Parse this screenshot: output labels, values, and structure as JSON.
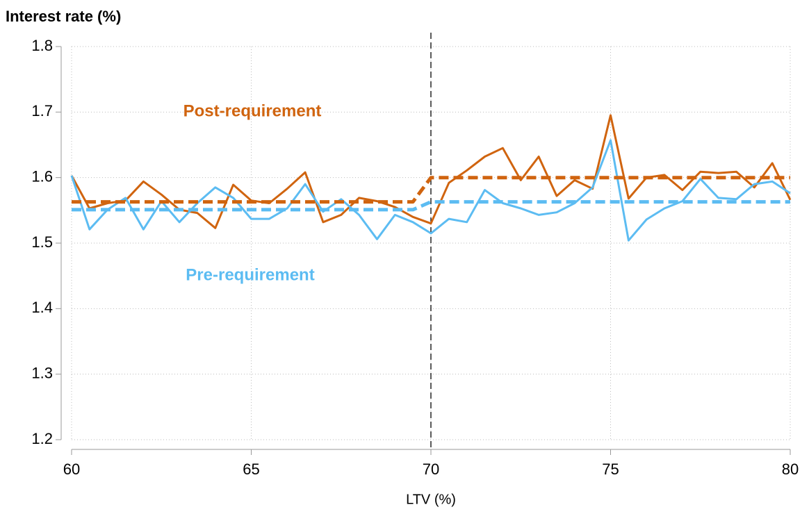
{
  "chart_data": {
    "type": "line",
    "y_axis_title": "Interest rate (%)",
    "x_axis_title": "LTV (%)",
    "x": [
      60,
      60.5,
      61,
      61.5,
      62,
      62.5,
      63,
      63.5,
      64,
      64.5,
      65,
      65.5,
      66,
      66.5,
      67,
      67.5,
      68,
      68.5,
      69,
      69.5,
      70,
      70.5,
      71,
      71.5,
      72,
      72.5,
      73,
      73.5,
      74,
      74.5,
      75,
      75.5,
      76,
      76.5,
      77,
      77.5,
      78,
      78.5,
      79,
      79.5,
      80
    ],
    "series": [
      {
        "name": "Post-requirement",
        "color": "#d0640f",
        "values": [
          1.603,
          1.553,
          1.561,
          1.565,
          1.594,
          1.574,
          1.551,
          1.546,
          1.523,
          1.589,
          1.565,
          1.561,
          1.583,
          1.608,
          1.532,
          1.543,
          1.569,
          1.564,
          1.555,
          1.54,
          1.53,
          1.592,
          1.611,
          1.632,
          1.645,
          1.596,
          1.632,
          1.572,
          1.596,
          1.583,
          1.695,
          1.568,
          1.6,
          1.604,
          1.581,
          1.609,
          1.607,
          1.609,
          1.585,
          1.622,
          1.566
        ]
      },
      {
        "name": "Pre-requirement",
        "color": "#5cbcf2",
        "values": [
          1.603,
          1.521,
          1.551,
          1.569,
          1.521,
          1.564,
          1.532,
          1.561,
          1.585,
          1.569,
          1.537,
          1.537,
          1.553,
          1.59,
          1.548,
          1.567,
          1.543,
          1.506,
          1.543,
          1.532,
          1.515,
          1.537,
          1.532,
          1.581,
          1.561,
          1.553,
          1.543,
          1.547,
          1.561,
          1.585,
          1.657,
          1.504,
          1.536,
          1.553,
          1.564,
          1.598,
          1.569,
          1.567,
          1.59,
          1.594,
          1.576
        ]
      }
    ],
    "fits": [
      {
        "color": "#d0640f",
        "x": [
          60,
          69.5,
          70,
          80
        ],
        "values": [
          1.563,
          1.563,
          1.6,
          1.6
        ]
      },
      {
        "color": "#5cbcf2",
        "x": [
          60,
          69.5,
          70,
          80
        ],
        "values": [
          1.551,
          1.551,
          1.563,
          1.563
        ]
      }
    ],
    "vline": 70,
    "xlim": [
      60,
      80
    ],
    "xticks": [
      60,
      65,
      70,
      75,
      80
    ],
    "ylim": [
      1.2,
      1.8
    ],
    "yticks": [
      1.2,
      1.3,
      1.4,
      1.5,
      1.6,
      1.7,
      1.8
    ],
    "grid": true
  }
}
